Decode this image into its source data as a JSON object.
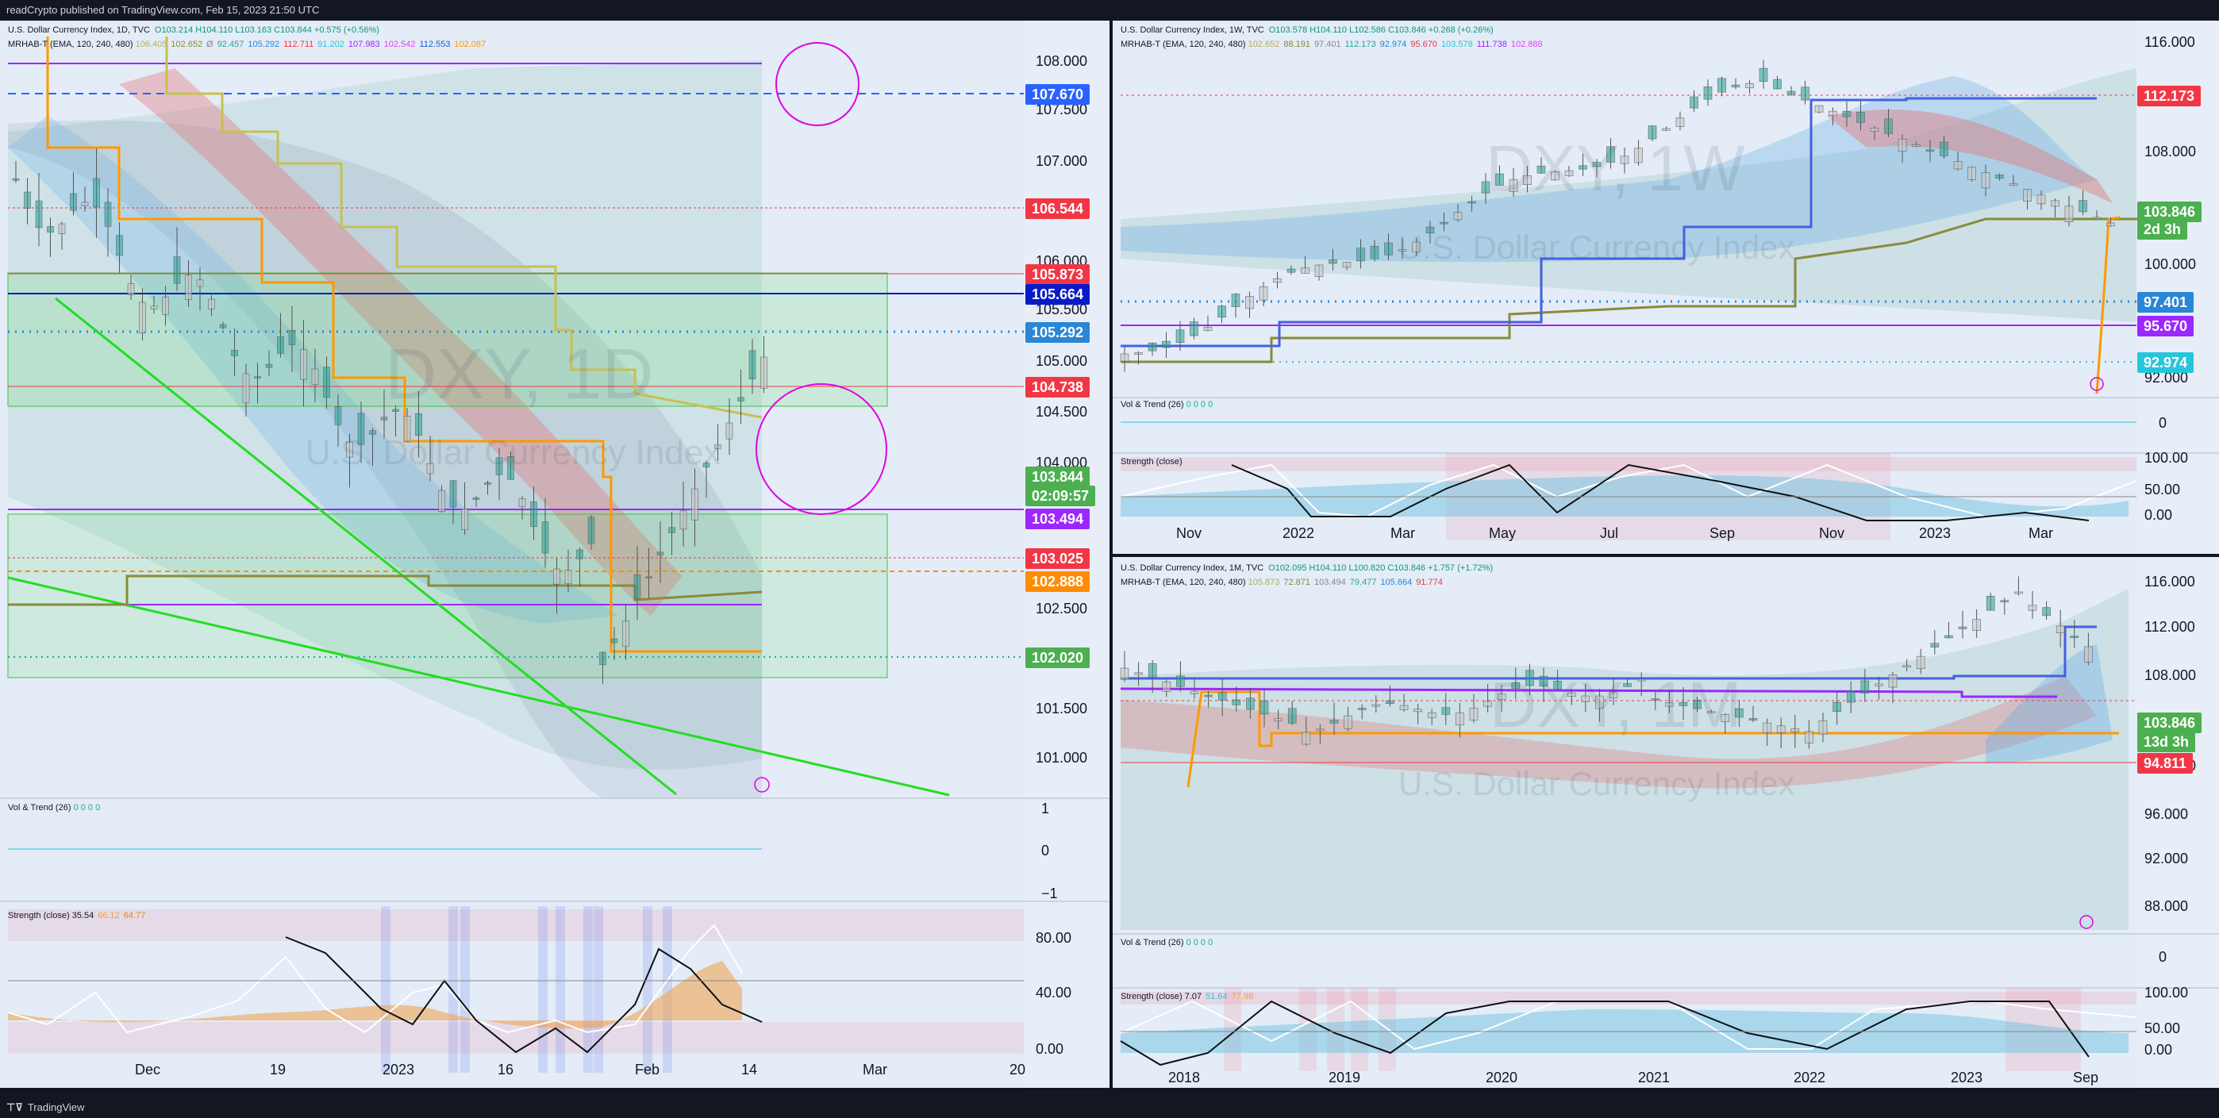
{
  "header": {
    "published": "readCrypto published on TradingView.com, Feb 15, 2023 21:50 UTC"
  },
  "footer": {
    "brand": "TradingView"
  },
  "left": {
    "legend1": "U.S. Dollar Currency Index, 1D, TVC",
    "legend1_values": "O103.214  H104.110  L103.163  C103.844  +0.575 (+0.56%)",
    "legend2": "MRHAB-T (EMA, 120, 240, 480)",
    "legend2_values": [
      "106.405",
      "102.652",
      "Ø",
      "92.457",
      "105.292",
      "112.711",
      "91.202",
      "107.983",
      "102.542",
      "112.553",
      "102.087"
    ],
    "watermark_big": "DXY, 1D",
    "watermark_small": "U.S. Dollar Currency Index",
    "vol_legend": "Vol & Trend (26)",
    "vol_values": "0  0  0  0",
    "strength_legend": "Strength (close)",
    "strength_values": [
      "35.54",
      "66.12",
      "64.77"
    ],
    "y_labels": [
      "108.000",
      "107.500",
      "107.000",
      "106.000",
      "105.500",
      "105.000",
      "104.500",
      "104.000",
      "102.500",
      "101.500",
      "101.000"
    ],
    "price_tags": [
      {
        "text": "107.670",
        "color": "#2962ff"
      },
      {
        "text": "106.544",
        "color": "#f23645"
      },
      {
        "text": "105.873",
        "color": "#f23645"
      },
      {
        "text": "105.664",
        "color": "#0a1ac9"
      },
      {
        "text": "105.292",
        "color": "#2a86d6"
      },
      {
        "text": "104.738",
        "color": "#f23645"
      },
      {
        "text": "103.844",
        "color": "#4caf50"
      },
      {
        "text": "02:09:57",
        "color": "#4caf50"
      },
      {
        "text": "103.494",
        "color": "#9c27ff"
      },
      {
        "text": "103.025",
        "color": "#f23645"
      },
      {
        "text": "102.888",
        "color": "#ff8c00"
      },
      {
        "text": "102.020",
        "color": "#4caf50"
      }
    ],
    "vol_axis": [
      "1",
      "0",
      "−1"
    ],
    "strength_axis": [
      "80.00",
      "40.00",
      "0.00"
    ],
    "x_labels": [
      "Dec",
      "19",
      "2023",
      "16",
      "Feb",
      "14",
      "Mar",
      "20"
    ]
  },
  "rt": {
    "legend1": "U.S. Dollar Currency Index, 1W, TVC",
    "legend1_values": "O103.578  H104.110  L102.586  C103.846  +0.268 (+0.26%)",
    "legend2": "MRHAB-T (EMA, 120, 240, 480)",
    "legend2_values": [
      "102.652",
      "88.191",
      "97.401",
      "112.173",
      "92.974",
      "95.670",
      "103.578",
      "111.738",
      "102.888"
    ],
    "watermark_big": "DXY, 1W",
    "watermark_small": "U.S. Dollar Currency Index",
    "vol_legend": "Vol & Trend (26)",
    "vol_values": "0  0  0  0",
    "strength_legend": "Strength (close)",
    "y_labels": [
      "116.000",
      "108.000",
      "100.000",
      "92.000"
    ],
    "price_tags": [
      {
        "text": "112.173",
        "color": "#f23645"
      },
      {
        "text": "103.846",
        "color": "#4caf50"
      },
      {
        "text": "2d 3h",
        "color": "#4caf50"
      },
      {
        "text": "97.401",
        "color": "#2a86d6"
      },
      {
        "text": "95.670",
        "color": "#9c27ff"
      },
      {
        "text": "92.974",
        "color": "#26c6da"
      }
    ],
    "vol_axis": [
      "0"
    ],
    "strength_axis": [
      "100.00",
      "50.00",
      "0.00"
    ],
    "x_labels": [
      "Nov",
      "2022",
      "Mar",
      "May",
      "Jul",
      "Sep",
      "Nov",
      "2023",
      "Mar"
    ]
  },
  "rb": {
    "legend1": "U.S. Dollar Currency Index, 1M, TVC",
    "legend1_values": "O102.095  H104.110  L100.820  C103.846  +1.757 (+1.72%)",
    "legend2": "MRHAB-T (EMA, 120, 240, 480)",
    "legend2_values": [
      "105.873",
      "72.871",
      "103.494",
      "79.477",
      "105.664",
      "91.774"
    ],
    "watermark_big": "DXY, 1M",
    "watermark_small": "U.S. Dollar Currency Index",
    "vol_legend": "Vol & Trend (26)",
    "vol_values": "0  0  0  0",
    "strength_legend": "Strength (close)",
    "strength_values": [
      "7.07",
      "51.64",
      "77.98"
    ],
    "y_labels": [
      "116.000",
      "112.000",
      "108.000",
      "100.000",
      "96.000",
      "92.000",
      "88.000"
    ],
    "price_tags": [
      {
        "text": "103.846",
        "color": "#4caf50"
      },
      {
        "text": "13d 3h",
        "color": "#4caf50"
      },
      {
        "text": "94.811",
        "color": "#f23645"
      }
    ],
    "vol_axis": [
      "0"
    ],
    "strength_axis": [
      "100.00",
      "50.00",
      "0.00"
    ],
    "x_labels": [
      "2018",
      "2019",
      "2020",
      "2021",
      "2022",
      "2023",
      "Sep"
    ]
  }
}
